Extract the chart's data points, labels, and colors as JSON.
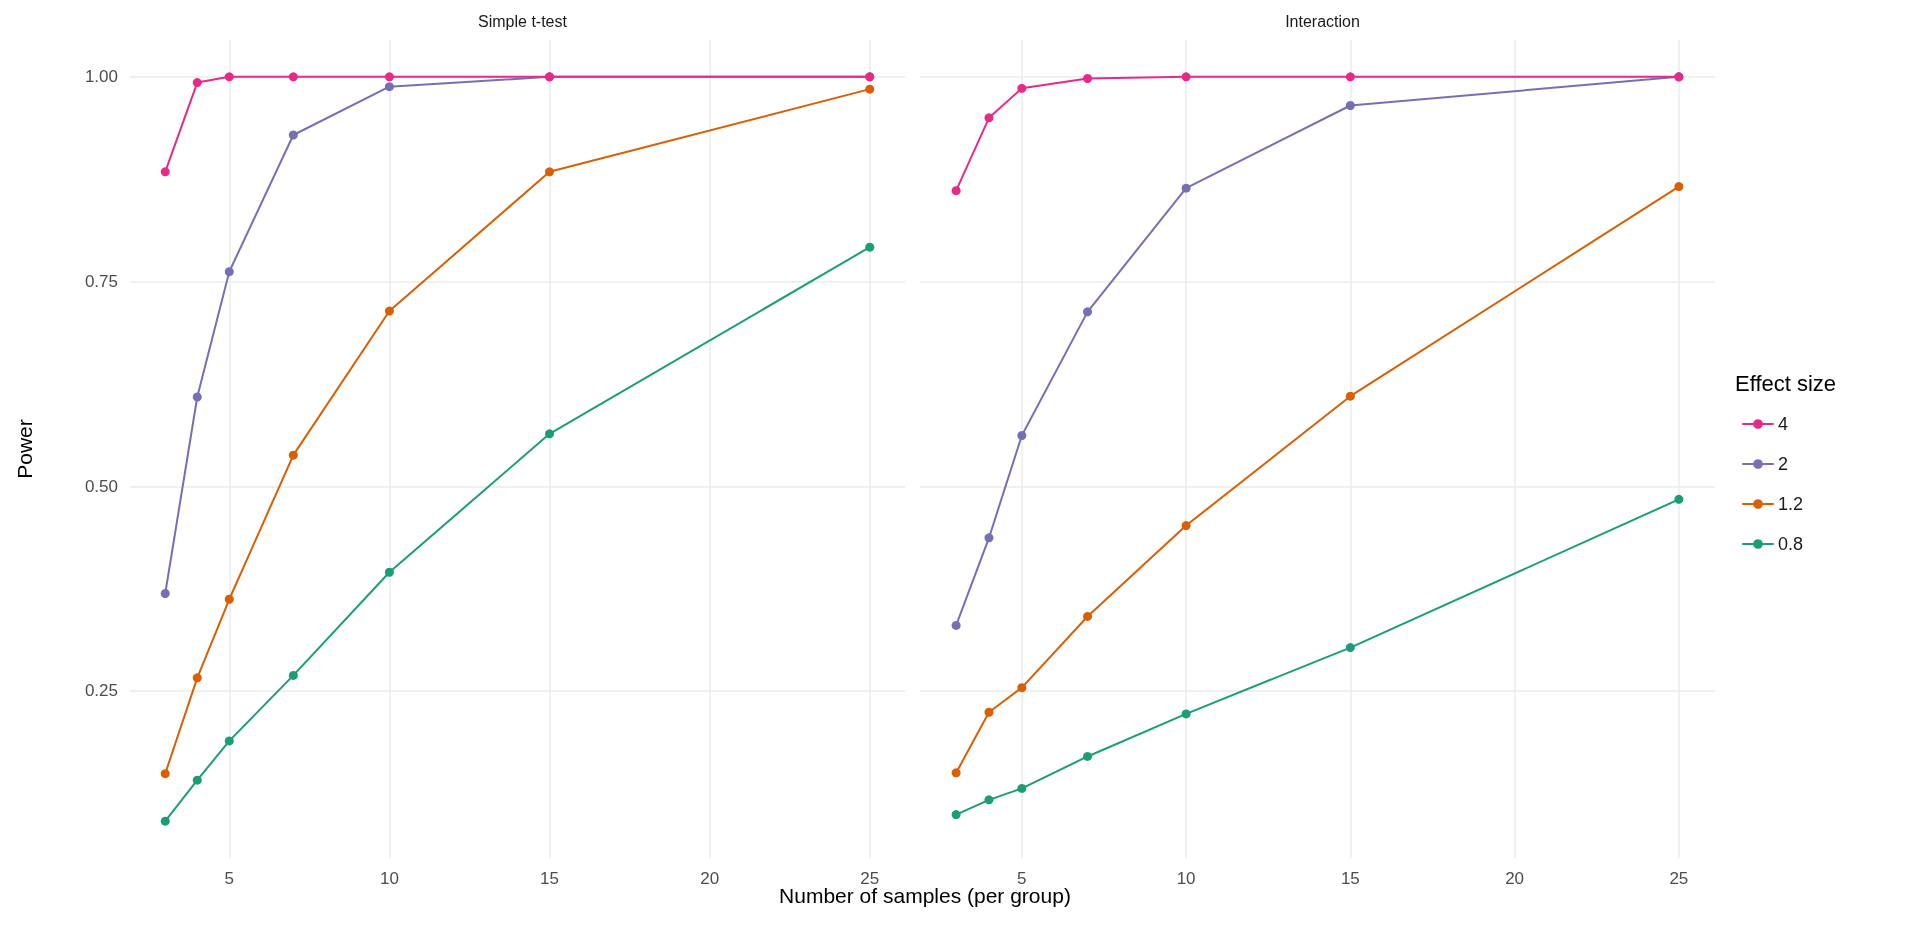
{
  "chart_data": [
    {
      "type": "line",
      "title": "Simple t-test",
      "xlabel": "Number of samples (per group)",
      "ylabel": "Power",
      "x": [
        3,
        4,
        5,
        7,
        10,
        15,
        25
      ],
      "series": [
        {
          "color": "#e7298a",
          "values": [
            0.884,
            0.993,
            1.0,
            1.0,
            1.0,
            1.0,
            1.0
          ]
        },
        {
          "color": "#7570b3",
          "values": [
            0.369,
            0.609,
            0.762,
            0.929,
            0.988,
            1.0,
            1.0
          ]
        },
        {
          "color": "#d95f02",
          "values": [
            0.149,
            0.266,
            0.362,
            0.538,
            0.714,
            0.884,
            0.985
          ]
        },
        {
          "color": "#1b9e77",
          "values": [
            0.091,
            0.141,
            0.189,
            0.269,
            0.395,
            0.564,
            0.792
          ]
        }
      ],
      "xlim": [
        1.9,
        26.1
      ],
      "xticks": [
        5,
        10,
        15,
        20,
        25
      ],
      "ylim": [
        0.046,
        1.045
      ],
      "yticks": [
        0.25,
        {
          "value": 0.5,
          "label": "0.50"
        },
        0.75,
        {
          "value": 1,
          "label": "1.00"
        }
      ],
      "grid": true,
      "marker": "circle",
      "line_style": "solid",
      "legend": false
    },
    {
      "type": "line",
      "title": "Interaction",
      "legend_title": "Effect size",
      "x": [
        3,
        4,
        5,
        7,
        10,
        15,
        25
      ],
      "series": [
        {
          "name": "4",
          "color": "#e7298a",
          "values": [
            0.861,
            0.95,
            0.986,
            0.998,
            1.0,
            1.0,
            1.0
          ]
        },
        {
          "name": "2",
          "color": "#7570b3",
          "values": [
            0.33,
            0.437,
            0.562,
            0.713,
            0.864,
            0.965,
            1.0
          ]
        },
        {
          "name": "1.2",
          "color": "#d95f02",
          "values": [
            0.15,
            0.224,
            0.254,
            0.341,
            0.452,
            0.61,
            0.866
          ]
        },
        {
          "name": "0.8",
          "color": "#1b9e77",
          "values": [
            0.099,
            0.117,
            0.131,
            0.17,
            0.222,
            0.303,
            0.484
          ]
        }
      ],
      "xlim": [
        1.9,
        26.1
      ],
      "xticks": [
        5,
        10,
        15,
        20,
        25
      ],
      "ylim": [
        0.046,
        1.045
      ],
      "yticks": [
        {
          "value": 0.25,
          "label": null
        },
        {
          "value": 0.5,
          "label": null
        },
        {
          "value": 0.75,
          "label": null
        },
        {
          "value": 1,
          "label": null
        }
      ],
      "grid": true,
      "marker": "circle",
      "line_style": "solid",
      "legend": "right",
      "tick_labels": "x"
    }
  ]
}
